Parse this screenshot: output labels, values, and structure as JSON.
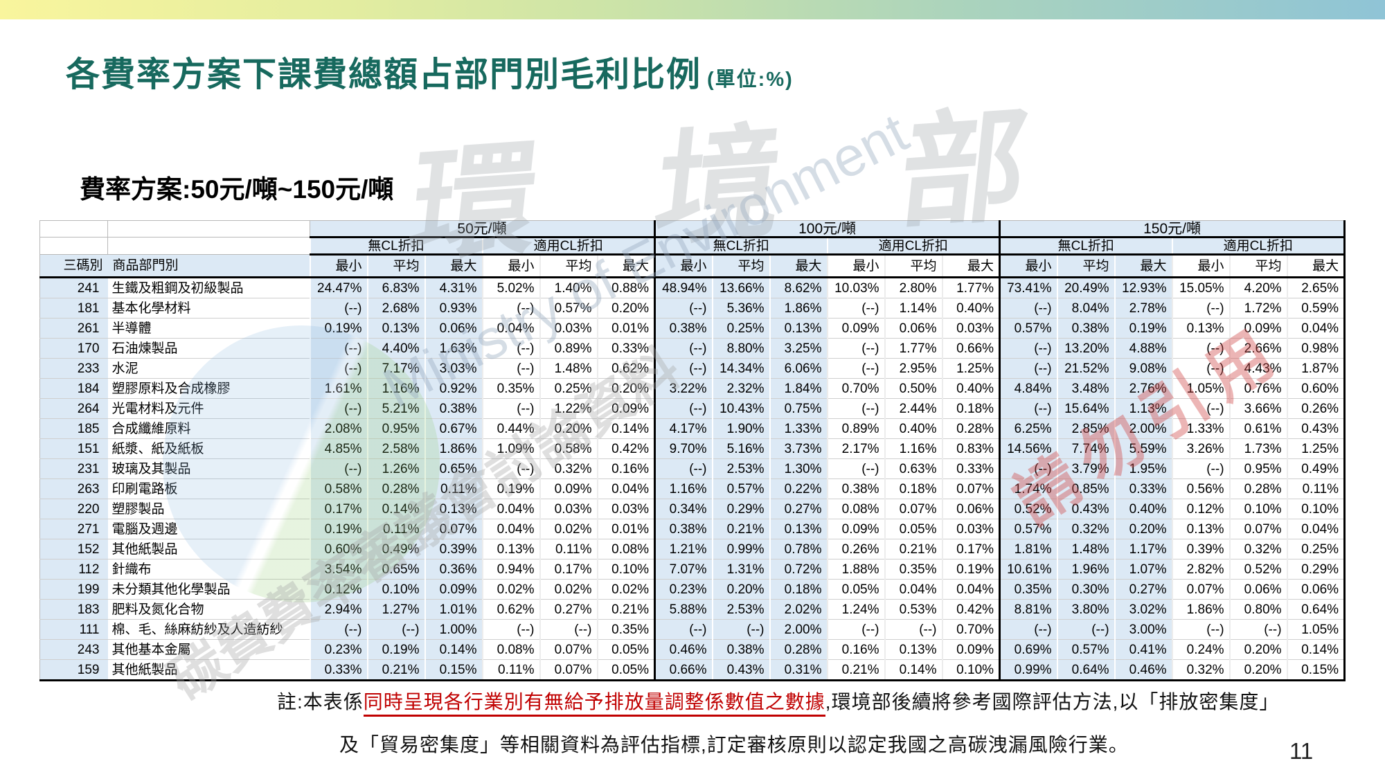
{
  "page": {
    "title": "各費率方案下課費總額占部門別毛利比例",
    "title_unit": "(單位:%)",
    "subtitle": "費率方案:50元/噸~150元/噸",
    "page_number": "11"
  },
  "colors": {
    "accent_teal": "#17695e",
    "header_blue": "#dce9f5",
    "note_red": "#c00000"
  },
  "table": {
    "col_code": "三碼別",
    "col_name": "商品部門別",
    "col_min": "最小",
    "col_avg": "平均",
    "col_max": "最大",
    "cl_no": "無CL折扣",
    "cl_yes": "適用CL折扣",
    "schemes": [
      {
        "label": "50元/噸"
      },
      {
        "label": "100元/噸"
      },
      {
        "label": "150元/噸"
      }
    ],
    "rows": [
      {
        "code": "241",
        "name": "生鐵及粗鋼及初級製品",
        "values": [
          "24.47%",
          "6.83%",
          "4.31%",
          "5.02%",
          "1.40%",
          "0.88%",
          "48.94%",
          "13.66%",
          "8.62%",
          "10.03%",
          "2.80%",
          "1.77%",
          "73.41%",
          "20.49%",
          "12.93%",
          "15.05%",
          "4.20%",
          "2.65%"
        ]
      },
      {
        "code": "181",
        "name": "基本化學材料",
        "values": [
          "(--)",
          "2.68%",
          "0.93%",
          "(--)",
          "0.57%",
          "0.20%",
          "(--)",
          "5.36%",
          "1.86%",
          "(--)",
          "1.14%",
          "0.40%",
          "(--)",
          "8.04%",
          "2.78%",
          "(--)",
          "1.72%",
          "0.59%"
        ]
      },
      {
        "code": "261",
        "name": "半導體",
        "values": [
          "0.19%",
          "0.13%",
          "0.06%",
          "0.04%",
          "0.03%",
          "0.01%",
          "0.38%",
          "0.25%",
          "0.13%",
          "0.09%",
          "0.06%",
          "0.03%",
          "0.57%",
          "0.38%",
          "0.19%",
          "0.13%",
          "0.09%",
          "0.04%"
        ]
      },
      {
        "code": "170",
        "name": "石油煉製品",
        "values": [
          "(--)",
          "4.40%",
          "1.63%",
          "(--)",
          "0.89%",
          "0.33%",
          "(--)",
          "8.80%",
          "3.25%",
          "(--)",
          "1.77%",
          "0.66%",
          "(--)",
          "13.20%",
          "4.88%",
          "(--)",
          "2.66%",
          "0.98%"
        ]
      },
      {
        "code": "233",
        "name": "水泥",
        "values": [
          "(--)",
          "7.17%",
          "3.03%",
          "(--)",
          "1.48%",
          "0.62%",
          "(--)",
          "14.34%",
          "6.06%",
          "(--)",
          "2.95%",
          "1.25%",
          "(--)",
          "21.52%",
          "9.08%",
          "(--)",
          "4.43%",
          "1.87%"
        ]
      },
      {
        "code": "184",
        "name": "塑膠原料及合成橡膠",
        "values": [
          "1.61%",
          "1.16%",
          "0.92%",
          "0.35%",
          "0.25%",
          "0.20%",
          "3.22%",
          "2.32%",
          "1.84%",
          "0.70%",
          "0.50%",
          "0.40%",
          "4.84%",
          "3.48%",
          "2.76%",
          "1.05%",
          "0.76%",
          "0.60%"
        ]
      },
      {
        "code": "264",
        "name": "光電材料及元件",
        "values": [
          "(--)",
          "5.21%",
          "0.38%",
          "(--)",
          "1.22%",
          "0.09%",
          "(--)",
          "10.43%",
          "0.75%",
          "(--)",
          "2.44%",
          "0.18%",
          "(--)",
          "15.64%",
          "1.13%",
          "(--)",
          "3.66%",
          "0.26%"
        ]
      },
      {
        "code": "185",
        "name": "合成纖維原料",
        "values": [
          "2.08%",
          "0.95%",
          "0.67%",
          "0.44%",
          "0.20%",
          "0.14%",
          "4.17%",
          "1.90%",
          "1.33%",
          "0.89%",
          "0.40%",
          "0.28%",
          "6.25%",
          "2.85%",
          "2.00%",
          "1.33%",
          "0.61%",
          "0.43%"
        ]
      },
      {
        "code": "151",
        "name": "紙漿、紙及紙板",
        "values": [
          "4.85%",
          "2.58%",
          "1.86%",
          "1.09%",
          "0.58%",
          "0.42%",
          "9.70%",
          "5.16%",
          "3.73%",
          "2.17%",
          "1.16%",
          "0.83%",
          "14.56%",
          "7.74%",
          "5.59%",
          "3.26%",
          "1.73%",
          "1.25%"
        ]
      },
      {
        "code": "231",
        "name": "玻璃及其製品",
        "values": [
          "(--)",
          "1.26%",
          "0.65%",
          "(--)",
          "0.32%",
          "0.16%",
          "(--)",
          "2.53%",
          "1.30%",
          "(--)",
          "0.63%",
          "0.33%",
          "(--)",
          "3.79%",
          "1.95%",
          "(--)",
          "0.95%",
          "0.49%"
        ]
      },
      {
        "code": "263",
        "name": "印刷電路板",
        "values": [
          "0.58%",
          "0.28%",
          "0.11%",
          "0.19%",
          "0.09%",
          "0.04%",
          "1.16%",
          "0.57%",
          "0.22%",
          "0.38%",
          "0.18%",
          "0.07%",
          "1.74%",
          "0.85%",
          "0.33%",
          "0.56%",
          "0.28%",
          "0.11%"
        ]
      },
      {
        "code": "220",
        "name": "塑膠製品",
        "values": [
          "0.17%",
          "0.14%",
          "0.13%",
          "0.04%",
          "0.03%",
          "0.03%",
          "0.34%",
          "0.29%",
          "0.27%",
          "0.08%",
          "0.07%",
          "0.06%",
          "0.52%",
          "0.43%",
          "0.40%",
          "0.12%",
          "0.10%",
          "0.10%"
        ]
      },
      {
        "code": "271",
        "name": "電腦及週邊",
        "values": [
          "0.19%",
          "0.11%",
          "0.07%",
          "0.04%",
          "0.02%",
          "0.01%",
          "0.38%",
          "0.21%",
          "0.13%",
          "0.09%",
          "0.05%",
          "0.03%",
          "0.57%",
          "0.32%",
          "0.20%",
          "0.13%",
          "0.07%",
          "0.04%"
        ]
      },
      {
        "code": "152",
        "name": "其他紙製品",
        "values": [
          "0.60%",
          "0.49%",
          "0.39%",
          "0.13%",
          "0.11%",
          "0.08%",
          "1.21%",
          "0.99%",
          "0.78%",
          "0.26%",
          "0.21%",
          "0.17%",
          "1.81%",
          "1.48%",
          "1.17%",
          "0.39%",
          "0.32%",
          "0.25%"
        ]
      },
      {
        "code": "112",
        "name": "針織布",
        "values": [
          "3.54%",
          "0.65%",
          "0.36%",
          "0.94%",
          "0.17%",
          "0.10%",
          "7.07%",
          "1.31%",
          "0.72%",
          "1.88%",
          "0.35%",
          "0.19%",
          "10.61%",
          "1.96%",
          "1.07%",
          "2.82%",
          "0.52%",
          "0.29%"
        ]
      },
      {
        "code": "199",
        "name": "未分類其他化學製品",
        "values": [
          "0.12%",
          "0.10%",
          "0.09%",
          "0.02%",
          "0.02%",
          "0.02%",
          "0.23%",
          "0.20%",
          "0.18%",
          "0.05%",
          "0.04%",
          "0.04%",
          "0.35%",
          "0.30%",
          "0.27%",
          "0.07%",
          "0.06%",
          "0.06%"
        ]
      },
      {
        "code": "183",
        "name": "肥料及氮化合物",
        "values": [
          "2.94%",
          "1.27%",
          "1.01%",
          "0.62%",
          "0.27%",
          "0.21%",
          "5.88%",
          "2.53%",
          "2.02%",
          "1.24%",
          "0.53%",
          "0.42%",
          "8.81%",
          "3.80%",
          "3.02%",
          "1.86%",
          "0.80%",
          "0.64%"
        ]
      },
      {
        "code": "111",
        "name": "棉、毛、絲麻紡紗及人造紡紗",
        "values": [
          "(--)",
          "(--)",
          "1.00%",
          "(--)",
          "(--)",
          "0.35%",
          "(--)",
          "(--)",
          "2.00%",
          "(--)",
          "(--)",
          "0.70%",
          "(--)",
          "(--)",
          "3.00%",
          "(--)",
          "(--)",
          "1.05%"
        ]
      },
      {
        "code": "243",
        "name": "其他基本金屬",
        "values": [
          "0.23%",
          "0.19%",
          "0.14%",
          "0.08%",
          "0.07%",
          "0.05%",
          "0.46%",
          "0.38%",
          "0.28%",
          "0.16%",
          "0.13%",
          "0.09%",
          "0.69%",
          "0.57%",
          "0.41%",
          "0.24%",
          "0.20%",
          "0.14%"
        ]
      },
      {
        "code": "159",
        "name": "其他紙製品",
        "values": [
          "0.33%",
          "0.21%",
          "0.15%",
          "0.11%",
          "0.07%",
          "0.05%",
          "0.66%",
          "0.43%",
          "0.31%",
          "0.21%",
          "0.14%",
          "0.10%",
          "0.99%",
          "0.64%",
          "0.46%",
          "0.32%",
          "0.20%",
          "0.15%"
        ]
      }
    ]
  },
  "note": {
    "prefix": "註:本表係",
    "highlight": "同時呈現各行業別有無給予排放量調整係數值之數據",
    "mid": ",環境部後續將參考國際評估方法,以「排放密集度」",
    "line2": "及「貿易密集度」等相關資料為評估指標,訂定審核原則以認定我國之高碳洩漏風險行業。"
  },
  "watermark": {
    "ministry_cn": "環 境 部",
    "ministry_en": "Ministry of Environment",
    "discussion": "碳費費率審議會討論資料",
    "no_quote": "請勿引用"
  }
}
